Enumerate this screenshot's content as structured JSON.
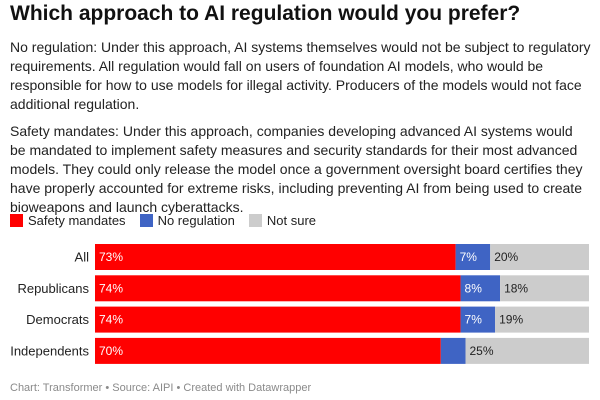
{
  "title": "Which approach to AI regulation would you prefer?",
  "description": {
    "paragraph_1": "No regulation: Under this approach, AI systems themselves would not be subject to regulatory requirements. All regulation would fall on users of foundation AI models, who would be responsible for how to use models for illegal activity. Producers of the models would not face additional regulation.",
    "paragraph_2": "Safety mandates: Under this approach, companies developing advanced AI systems would be mandated to implement safety measures and security standards for their most advanced models. They could only release the model once a government oversight board certifies they have properly accounted for extreme risks, including preventing AI from being used to create bioweapons and launch cyberattacks."
  },
  "footer": "Chart: Transformer • Source: AIPI • Created with Datawrapper",
  "colors": {
    "safety_mandates": "#ff0000",
    "no_regulation": "#3f64c4",
    "not_sure": "#cccccc"
  },
  "chart_data": {
    "type": "bar",
    "orientation": "horizontal",
    "stacked": true,
    "categories": [
      "All",
      "Republicans",
      "Democrats",
      "Independents"
    ],
    "series": [
      {
        "name": "Safety mandates",
        "values": [
          73,
          74,
          74,
          70
        ],
        "labels": [
          "73%",
          "74%",
          "74%",
          "70%"
        ],
        "color": "#ff0000"
      },
      {
        "name": "No regulation",
        "values": [
          7,
          8,
          7,
          5
        ],
        "labels": [
          "7%",
          "8%",
          "7%",
          ""
        ],
        "color": "#3f64c4"
      },
      {
        "name": "Not sure",
        "values": [
          20,
          18,
          19,
          25
        ],
        "labels": [
          "20%",
          "18%",
          "19%",
          "25%"
        ],
        "color": "#cccccc"
      }
    ],
    "xlim": [
      0,
      100
    ],
    "legend": "top-left",
    "grid": false
  }
}
